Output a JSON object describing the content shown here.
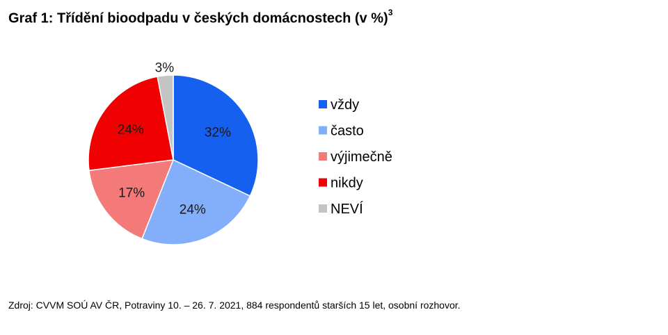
{
  "title": {
    "text": "Graf 1: Třídění bioodpadu v českých domácnostech (v %)",
    "footnote_mark": "3"
  },
  "chart_data": {
    "type": "pie",
    "categories": [
      "vždy",
      "často",
      "výjimečně",
      "nikdy",
      "NEVÍ"
    ],
    "values": [
      32,
      24,
      17,
      24,
      3
    ],
    "labels": [
      "32%",
      "24%",
      "17%",
      "24%",
      "3%"
    ],
    "colors": [
      "#1660F0",
      "#82AEFA",
      "#F47A7A",
      "#F00000",
      "#C4C4C4"
    ],
    "start": "12 o'clock",
    "direction": "clockwise",
    "legend_position": "right"
  },
  "source": "Zdroj: CVVM SOÚ AV ČR, Potraviny 10. – 26. 7. 2021, 884 respondentů starších 15 let, osobní rozhovor."
}
